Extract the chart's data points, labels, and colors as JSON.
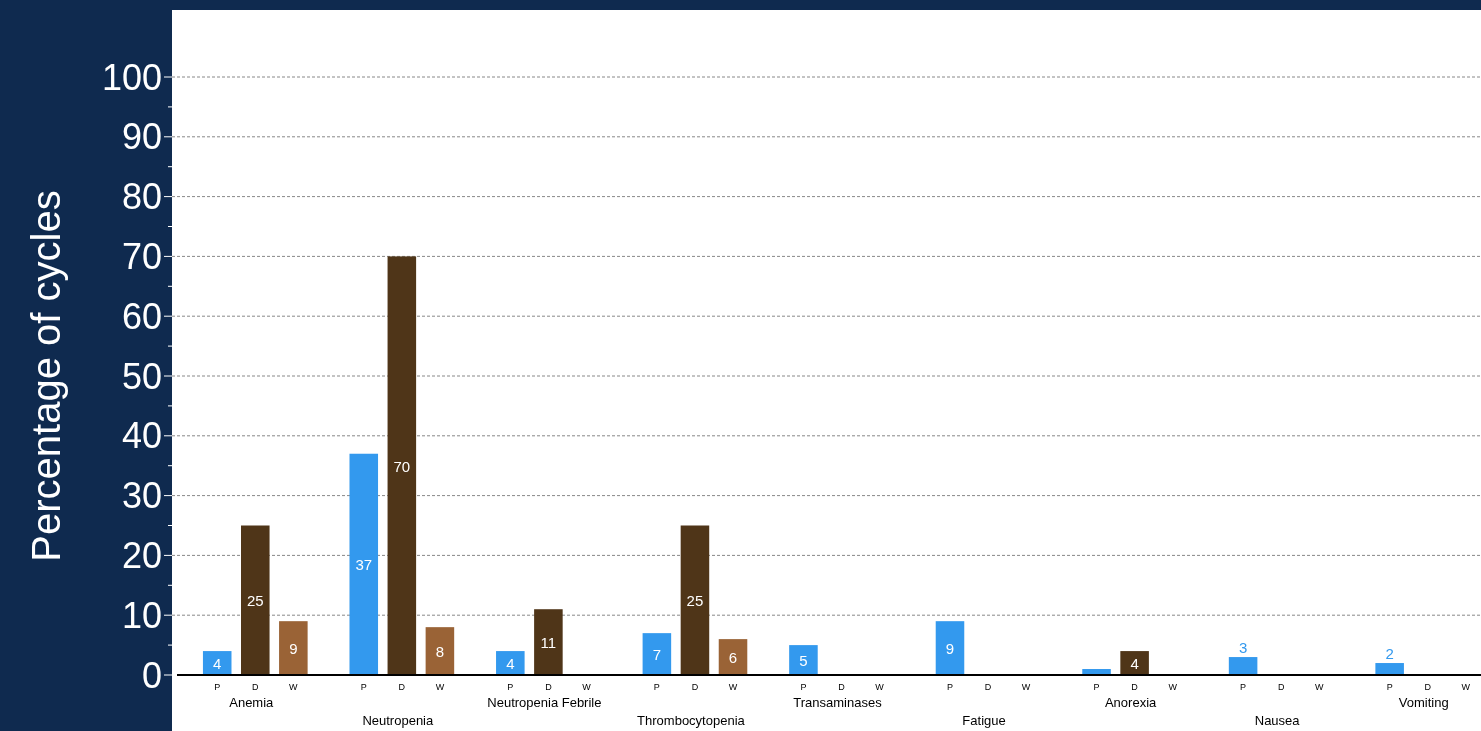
{
  "chart_data": {
    "type": "bar",
    "ylabel": "Percentage of cycles",
    "categories": [
      "Anemia",
      "Neutropenia",
      "Neutropenia Febrile",
      "Thrombocytopenia",
      "Transaminases",
      "Fatigue",
      "Anorexia",
      "Nausea",
      "Vomiting"
    ],
    "series": [
      {
        "name": "P",
        "color": "#3399ee",
        "values": [
          4,
          37,
          4,
          7,
          5,
          9,
          1,
          3,
          2
        ],
        "value_labels": [
          "4",
          "37",
          "4",
          "7",
          "5",
          "9",
          null,
          "3",
          "2"
        ]
      },
      {
        "name": "D",
        "color": "#4f3518",
        "values": [
          25,
          70,
          11,
          25,
          null,
          null,
          4,
          null,
          null
        ],
        "value_labels": [
          "25",
          "70",
          "11",
          "25",
          null,
          null,
          "4",
          null,
          null
        ]
      },
      {
        "name": "W",
        "color": "#9a6336",
        "values": [
          9,
          8,
          null,
          6,
          null,
          null,
          null,
          null,
          null
        ],
        "value_labels": [
          "9",
          "8",
          null,
          "6",
          null,
          null,
          null,
          null,
          null
        ]
      }
    ],
    "ylim": [
      0,
      100
    ],
    "yticks": [
      0,
      {
        "value": 5,
        "label": null
      },
      10,
      {
        "value": 15,
        "label": null
      },
      20,
      {
        "value": 25,
        "label": null
      },
      30,
      {
        "value": 35,
        "label": null
      },
      40,
      {
        "value": 45,
        "label": null
      },
      50,
      {
        "value": 55,
        "label": null
      },
      60,
      {
        "value": 65,
        "label": null
      },
      70,
      {
        "value": 75,
        "label": null
      },
      80,
      {
        "value": 85,
        "label": null
      },
      90,
      {
        "value": 95,
        "label": null
      },
      100
    ],
    "grid": "y"
  }
}
